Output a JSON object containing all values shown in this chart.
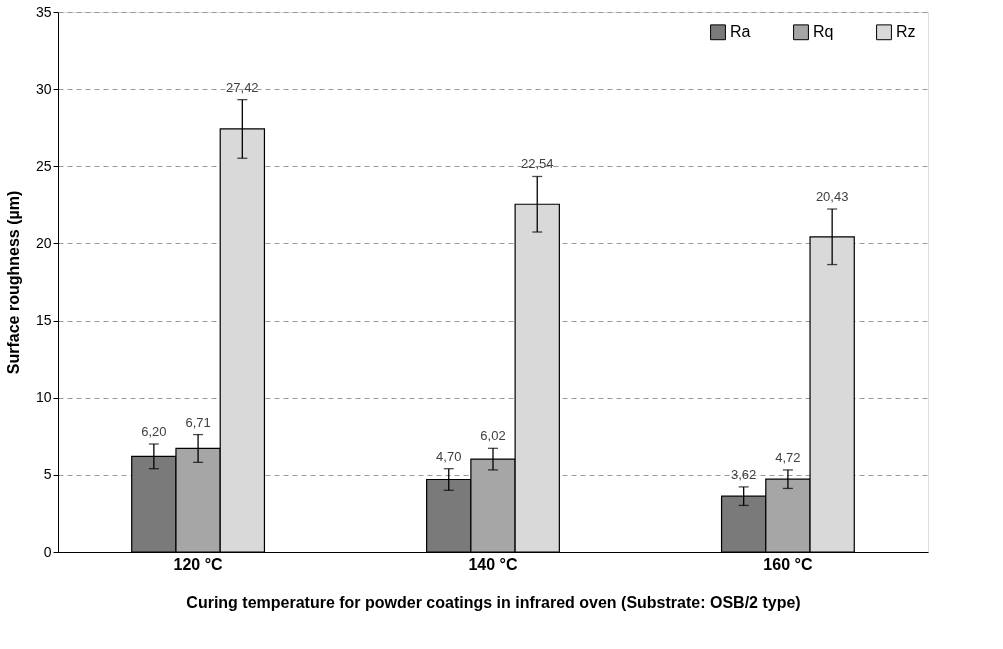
{
  "chart_data": {
    "type": "bar",
    "xlabel": "Curing temperature for powder coatings in infrared oven (Substrate: OSB/2 type)",
    "ylabel": "Surface roughness (µm)",
    "categories": [
      "120 °C",
      "140 °C",
      "160 °C"
    ],
    "series": [
      {
        "name": "Ra",
        "color": "#7a7a7a",
        "values": [
          6.2,
          4.7,
          3.62
        ],
        "errors": [
          0.8,
          0.7,
          0.6
        ],
        "value_labels": [
          "6,20",
          "4,70",
          "3,62"
        ]
      },
      {
        "name": "Rq",
        "color": "#a6a6a6",
        "values": [
          6.71,
          6.02,
          4.72
        ],
        "errors": [
          0.9,
          0.7,
          0.6
        ],
        "value_labels": [
          "6,71",
          "6,02",
          "4,72"
        ]
      },
      {
        "name": "Rz",
        "color": "#d9d9d9",
        "values": [
          27.42,
          22.54,
          20.43
        ],
        "errors": [
          1.9,
          1.8,
          1.8
        ],
        "value_labels": [
          "27,42",
          "22,54",
          "20,43"
        ]
      }
    ],
    "ylim": [
      0,
      35
    ],
    "yticks": [
      0,
      5,
      10,
      15,
      20,
      25,
      30,
      35
    ],
    "grid": "y",
    "legend": "top right"
  }
}
